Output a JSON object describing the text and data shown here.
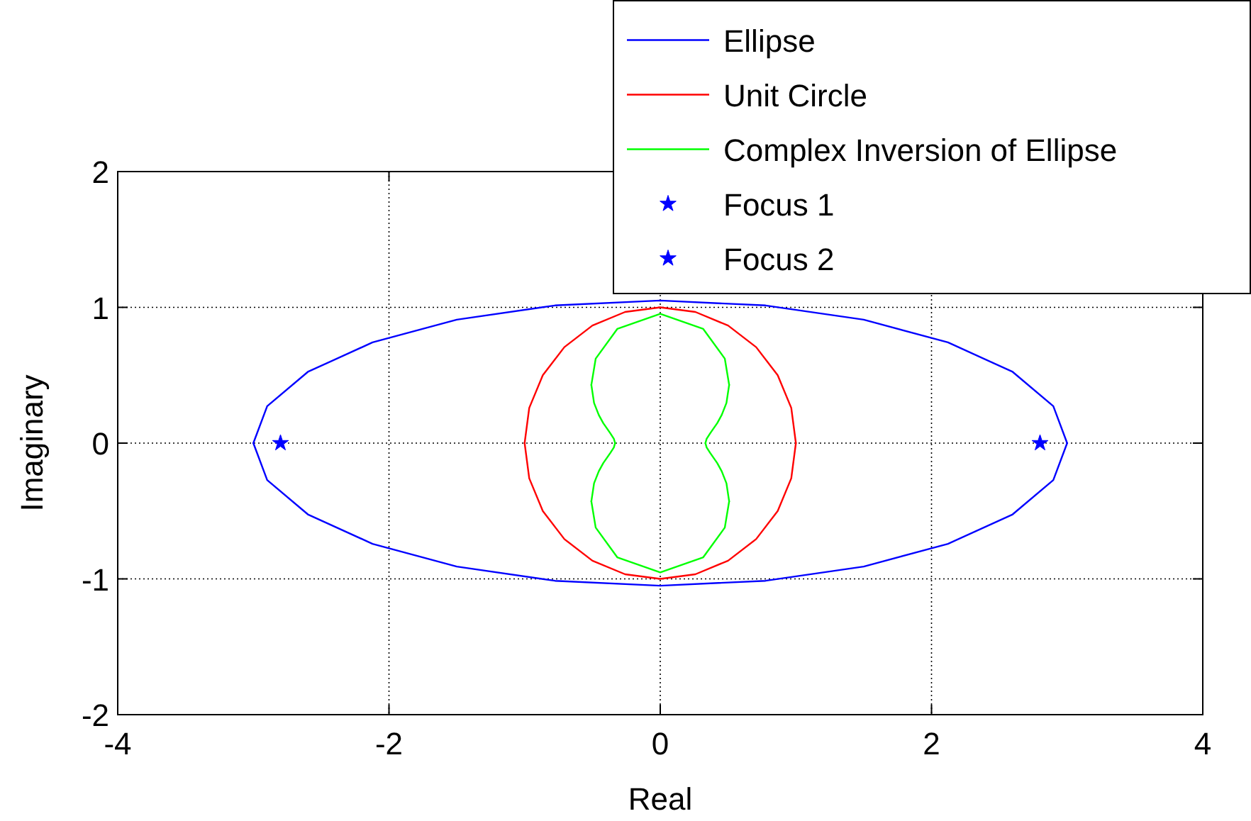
{
  "chart_data": {
    "type": "line",
    "xlabel": "Real",
    "ylabel": "Imaginary",
    "xlim": [
      -4,
      4
    ],
    "ylim": [
      -2,
      2
    ],
    "xticks": [
      -4,
      -2,
      0,
      2,
      4
    ],
    "yticks": [
      -2,
      -1,
      0,
      1,
      2
    ],
    "grid": true,
    "legend": "top right",
    "series": [
      {
        "name": "Ellipse",
        "color": "#0000ff",
        "x": [
          3,
          2.898,
          2.598,
          2.121,
          1.5,
          0.776,
          0,
          -0.776,
          -1.5,
          -2.121,
          -2.598,
          -2.898,
          -3,
          -2.898,
          -2.598,
          -2.121,
          -1.5,
          -0.776,
          0,
          0.776,
          1.5,
          2.121,
          2.598,
          2.898,
          3
        ],
        "values": [
          0,
          0.272,
          0.525,
          0.742,
          0.909,
          1.014,
          1.05,
          1.014,
          0.909,
          0.742,
          0.525,
          0.272,
          0,
          -0.272,
          -0.525,
          -0.742,
          -0.909,
          -1.014,
          -1.05,
          -1.014,
          -0.909,
          -0.742,
          -0.525,
          -0.272,
          0
        ]
      },
      {
        "name": "Unit Circle",
        "color": "#ff0000",
        "x": [
          1,
          0.966,
          0.866,
          0.707,
          0.5,
          0.259,
          0,
          -0.259,
          -0.5,
          -0.707,
          -0.866,
          -0.966,
          -1,
          -0.966,
          -0.866,
          -0.707,
          -0.5,
          -0.259,
          0,
          0.259,
          0.5,
          0.707,
          0.866,
          0.966,
          1
        ],
        "values": [
          0,
          0.259,
          0.5,
          0.707,
          0.866,
          0.966,
          1,
          0.966,
          0.866,
          0.707,
          0.5,
          0.259,
          0,
          -0.259,
          -0.5,
          -0.707,
          -0.866,
          -0.966,
          -1,
          -0.966,
          -0.866,
          -0.707,
          -0.5,
          -0.259,
          0
        ]
      },
      {
        "name": "Complex Inversion of Ellipse",
        "color": "#00ff00",
        "x": [
          0.333,
          0.342,
          0.37,
          0.42,
          0.453,
          0.488,
          0.508,
          0.476,
          0.317,
          0,
          -0.317,
          -0.476,
          -0.508,
          -0.488,
          -0.453,
          -0.42,
          -0.37,
          -0.342,
          -0.333,
          -0.342,
          -0.37,
          -0.42,
          -0.453,
          -0.488,
          -0.508,
          -0.476,
          -0.317,
          0,
          0.317,
          0.476,
          0.508,
          0.488,
          0.453,
          0.42,
          0.37,
          0.342,
          0.333
        ],
        "values": [
          0,
          0.032,
          0.075,
          0.147,
          0.207,
          0.296,
          0.429,
          0.622,
          0.841,
          0.952,
          0.841,
          0.622,
          0.429,
          0.296,
          0.207,
          0.147,
          0.075,
          0.032,
          0,
          -0.032,
          -0.075,
          -0.147,
          -0.207,
          -0.296,
          -0.429,
          -0.622,
          -0.841,
          -0.952,
          -0.841,
          -0.622,
          -0.429,
          -0.296,
          -0.207,
          -0.147,
          -0.075,
          -0.032,
          0
        ]
      },
      {
        "name": "Focus 1",
        "type": "scatter",
        "marker": "star",
        "color": "#0000ff",
        "x": [
          -2.8
        ],
        "values": [
          0
        ]
      },
      {
        "name": "Focus 2",
        "type": "scatter",
        "marker": "star",
        "color": "#0000ff",
        "x": [
          2.8
        ],
        "values": [
          0
        ]
      }
    ]
  }
}
